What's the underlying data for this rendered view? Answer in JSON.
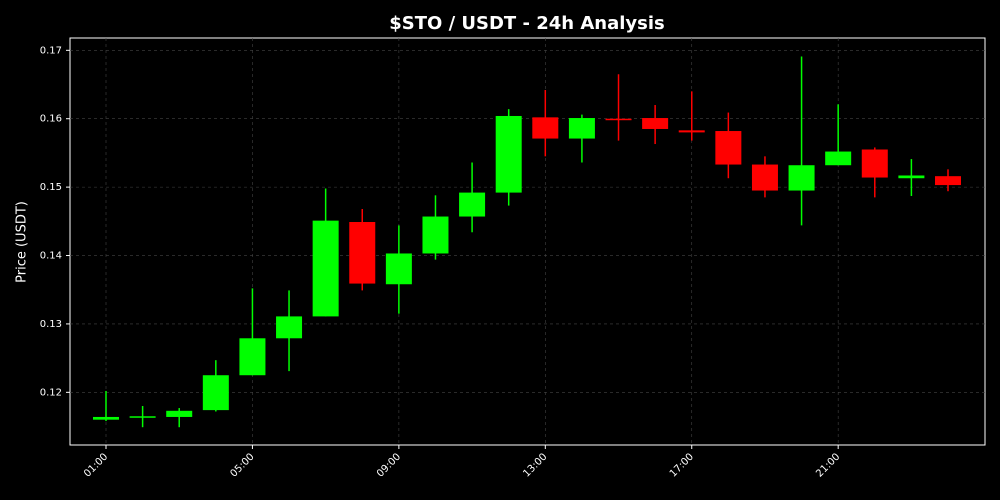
{
  "chart_data": {
    "type": "candlestick",
    "title": "$STO / USDT - 24h Analysis",
    "y_label": "Price (USDT)",
    "categories": [
      "01:00",
      null,
      null,
      null,
      "05:00",
      null,
      null,
      null,
      "09:00",
      null,
      null,
      null,
      "13:00",
      null,
      null,
      null,
      "17:00",
      null,
      null,
      null,
      "21:00",
      null,
      null,
      null
    ],
    "open": [
      0.116,
      0.1163,
      0.1164,
      0.1174,
      0.1225,
      0.1279,
      0.1311,
      0.1449,
      0.1358,
      0.1403,
      0.1457,
      0.1492,
      0.1602,
      0.1571,
      0.16,
      0.1601,
      0.1583,
      0.1582,
      0.1533,
      0.1495,
      0.1532,
      0.1555,
      0.1513,
      0.1516
    ],
    "high": [
      0.1202,
      0.118,
      0.1177,
      0.1247,
      0.1352,
      0.1349,
      0.1498,
      0.1468,
      0.1444,
      0.1488,
      0.1536,
      0.1614,
      0.1642,
      0.1606,
      0.1665,
      0.162,
      0.164,
      0.1609,
      0.1545,
      0.1691,
      0.1621,
      0.1558,
      0.1541,
      0.1526
    ],
    "low": [
      0.1158,
      0.1149,
      0.1149,
      0.1172,
      0.1225,
      0.1231,
      0.1311,
      0.1349,
      0.1315,
      0.1394,
      0.1434,
      0.1473,
      0.1545,
      0.1536,
      0.1568,
      0.1563,
      0.1568,
      0.1513,
      0.1485,
      0.1444,
      0.1532,
      0.1485,
      0.1487,
      0.1494
    ],
    "close": [
      0.1164,
      0.1165,
      0.1173,
      0.1225,
      0.1279,
      0.1311,
      0.1451,
      0.1359,
      0.1403,
      0.1457,
      0.1492,
      0.1604,
      0.1571,
      0.1601,
      0.1598,
      0.1585,
      0.158,
      0.1533,
      0.1495,
      0.1532,
      0.1552,
      0.1514,
      0.1517,
      0.1503
    ],
    "up_color": "#00ff00",
    "down_color": "#ff0000",
    "ylim": [
      0.1123,
      0.1718
    ],
    "yticks": [
      0.12,
      0.13,
      0.14,
      0.15,
      0.16,
      0.17
    ],
    "grid": true
  }
}
